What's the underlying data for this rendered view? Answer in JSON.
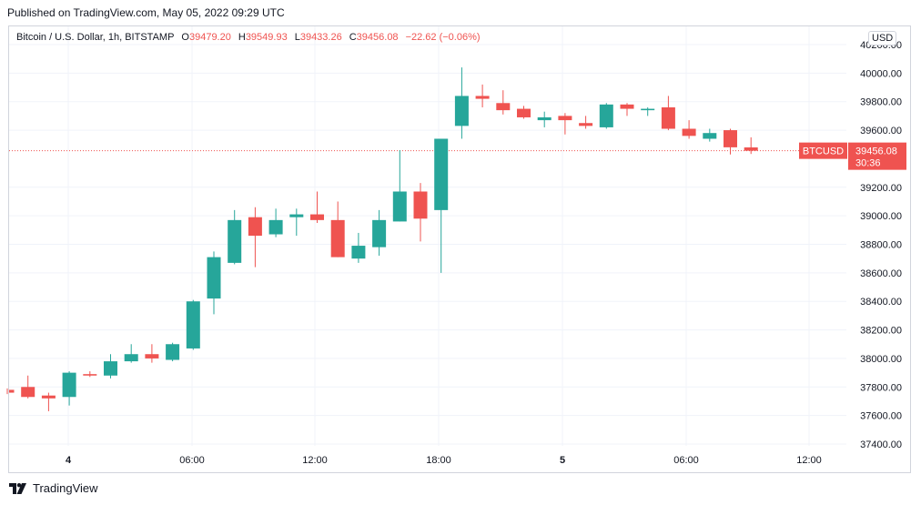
{
  "header": {
    "published": "Published on TradingView.com, May 05, 2022 09:29 UTC"
  },
  "legend": {
    "title": "Bitcoin / U.S. Dollar, 1h, BITSTAMP",
    "o_label": "O",
    "o_value": "39479.20",
    "h_label": "H",
    "h_value": "39549.93",
    "l_label": "L",
    "l_value": "39433.26",
    "c_label": "C",
    "c_value": "39456.08",
    "change": "−22.62 (−0.06%)"
  },
  "currency": "USD",
  "price_tag": {
    "symbol": "BTCUSD",
    "price": "39456.08",
    "countdown": "30:36"
  },
  "footer": {
    "brand": "TradingView",
    "logo_icon": "tradingview-logo-icon"
  },
  "colors": {
    "up": "#26a69a",
    "down": "#ef5350",
    "grid": "#f0f3fa",
    "text": "#131722"
  },
  "chart_data": {
    "type": "candlestick",
    "title": "Bitcoin / U.S. Dollar, 1h, BITSTAMP",
    "x_tick_labels": [
      "4",
      "06:00",
      "12:00",
      "18:00",
      "5",
      "06:00",
      "12:00"
    ],
    "y_tick_labels": [
      "37400.00",
      "37600.00",
      "37800.00",
      "38000.00",
      "38200.00",
      "38400.00",
      "38600.00",
      "38800.00",
      "39000.00",
      "39200.00",
      "39600.00",
      "39800.00",
      "40000.00",
      "40200.00"
    ],
    "ylim": [
      37390,
      40250
    ],
    "last_price": 39456.08,
    "grid": true,
    "candles": [
      {
        "o": 37780,
        "h": 37790,
        "l": 37750,
        "c": 37760
      },
      {
        "o": 37800,
        "h": 37880,
        "l": 37720,
        "c": 37730
      },
      {
        "o": 37740,
        "h": 37760,
        "l": 37630,
        "c": 37720
      },
      {
        "o": 37730,
        "h": 37910,
        "l": 37670,
        "c": 37900
      },
      {
        "o": 37890,
        "h": 37910,
        "l": 37870,
        "c": 37880
      },
      {
        "o": 37880,
        "h": 38030,
        "l": 37860,
        "c": 37980
      },
      {
        "o": 37980,
        "h": 38100,
        "l": 37970,
        "c": 38030
      },
      {
        "o": 38030,
        "h": 38100,
        "l": 37970,
        "c": 38000
      },
      {
        "o": 37990,
        "h": 38110,
        "l": 37980,
        "c": 38100
      },
      {
        "o": 38070,
        "h": 38410,
        "l": 38060,
        "c": 38400
      },
      {
        "o": 38420,
        "h": 38750,
        "l": 38310,
        "c": 38710
      },
      {
        "o": 38670,
        "h": 39040,
        "l": 38660,
        "c": 38970
      },
      {
        "o": 38990,
        "h": 39060,
        "l": 38640,
        "c": 38860
      },
      {
        "o": 38870,
        "h": 39050,
        "l": 38850,
        "c": 38970
      },
      {
        "o": 38990,
        "h": 39050,
        "l": 38860,
        "c": 39010
      },
      {
        "o": 39010,
        "h": 39170,
        "l": 38950,
        "c": 38970
      },
      {
        "o": 38970,
        "h": 39100,
        "l": 38710,
        "c": 38710
      },
      {
        "o": 38700,
        "h": 38880,
        "l": 38670,
        "c": 38790
      },
      {
        "o": 38780,
        "h": 39040,
        "l": 38720,
        "c": 38970
      },
      {
        "o": 38960,
        "h": 39460,
        "l": 38960,
        "c": 39170
      },
      {
        "o": 39170,
        "h": 39230,
        "l": 38820,
        "c": 38980
      },
      {
        "o": 39040,
        "h": 39540,
        "l": 38600,
        "c": 39540
      },
      {
        "o": 39630,
        "h": 40040,
        "l": 39540,
        "c": 39840
      },
      {
        "o": 39840,
        "h": 39920,
        "l": 39760,
        "c": 39820
      },
      {
        "o": 39790,
        "h": 39880,
        "l": 39710,
        "c": 39740
      },
      {
        "o": 39750,
        "h": 39770,
        "l": 39680,
        "c": 39690
      },
      {
        "o": 39670,
        "h": 39730,
        "l": 39620,
        "c": 39690
      },
      {
        "o": 39700,
        "h": 39720,
        "l": 39570,
        "c": 39670
      },
      {
        "o": 39650,
        "h": 39700,
        "l": 39610,
        "c": 39630
      },
      {
        "o": 39620,
        "h": 39790,
        "l": 39610,
        "c": 39780
      },
      {
        "o": 39780,
        "h": 39790,
        "l": 39700,
        "c": 39750
      },
      {
        "o": 39740,
        "h": 39760,
        "l": 39700,
        "c": 39750
      },
      {
        "o": 39760,
        "h": 39840,
        "l": 39600,
        "c": 39610
      },
      {
        "o": 39610,
        "h": 39670,
        "l": 39540,
        "c": 39560
      },
      {
        "o": 39540,
        "h": 39610,
        "l": 39520,
        "c": 39580
      },
      {
        "o": 39600,
        "h": 39610,
        "l": 39430,
        "c": 39480
      },
      {
        "o": 39479.2,
        "h": 39549.93,
        "l": 39433.26,
        "c": 39456.08
      }
    ]
  }
}
